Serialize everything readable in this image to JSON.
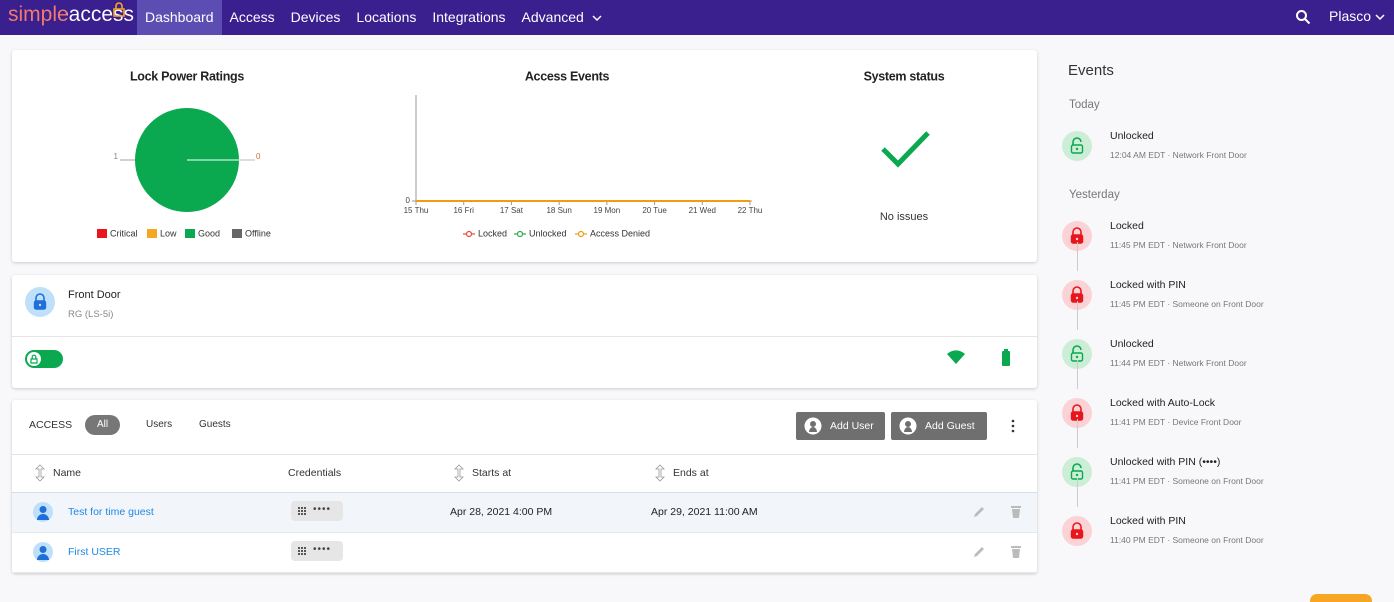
{
  "nav": {
    "logo": "simpleaccess",
    "items": [
      "Dashboard",
      "Access",
      "Devices",
      "Locations",
      "Integrations",
      "Advanced"
    ],
    "active": 0,
    "user": "Plasco"
  },
  "lock_power_ratings": {
    "type": "pie",
    "title": "Lock Power Ratings",
    "categories": [
      "Critical",
      "Low",
      "Good",
      "Offline"
    ],
    "colors": [
      "#e8161b",
      "#f5a623",
      "#0aa84f",
      "#666666"
    ],
    "values": [
      0,
      0,
      1,
      0
    ]
  },
  "access_events": {
    "type": "line",
    "title": "Access Events",
    "categories": [
      "15 Thu",
      "16 Fri",
      "17 Sat",
      "18 Sun",
      "19 Mon",
      "20 Tue",
      "21 Wed",
      "22 Thu"
    ],
    "ylim": [
      0,
      1
    ],
    "yticks": [
      0
    ],
    "series": [
      {
        "name": "Locked",
        "color": "#e74c3c",
        "values": [
          0,
          0,
          0,
          0,
          0,
          0,
          0,
          0
        ]
      },
      {
        "name": "Unlocked",
        "color": "#2eaa4a",
        "values": [
          0,
          0,
          0,
          0,
          0,
          0,
          0,
          0
        ]
      },
      {
        "name": "Access Denied",
        "color": "#f39c12",
        "values": [
          0,
          0,
          0,
          0,
          0,
          0,
          0,
          0
        ]
      }
    ]
  },
  "system_status": {
    "title": "System status",
    "message": "No issues"
  },
  "device": {
    "name": "Front Door",
    "model": "RG (LS-5i)"
  },
  "access": {
    "label": "ACCESS",
    "tabs": [
      "All",
      "Users",
      "Guests"
    ],
    "active_tab": 0,
    "buttons": [
      "Add User",
      "Add Guest"
    ],
    "columns": [
      "Name",
      "Credentials",
      "Starts at",
      "Ends at"
    ],
    "rows": [
      {
        "name": "Test for time guest",
        "credential": "••••",
        "starts": "Apr 28, 2021 4:00 PM",
        "ends": "Apr 29, 2021 11:00 AM"
      },
      {
        "name": "First USER",
        "credential": "••••"
      }
    ]
  },
  "events": {
    "title": "Events",
    "groups": [
      {
        "label": "Today",
        "items": [
          {
            "title": "Unlocked",
            "time": "12:04 AM EDT · Network Front Door"
          }
        ]
      },
      {
        "label": "Yesterday",
        "items": [
          {
            "title": "Locked",
            "time": "11:45 PM EDT · Network Front Door"
          },
          {
            "title": "Locked with PIN",
            "time": "11:45 PM EDT · Someone on Front Door"
          },
          {
            "title": "Unlocked",
            "time": "11:44 PM EDT · Network Front Door"
          },
          {
            "title": "Locked with Auto-Lock",
            "time": "11:41 PM EDT · Device Front Door"
          },
          {
            "title": "Unlocked with PIN (••••)",
            "time": "11:41 PM EDT · Someone on Front Door"
          },
          {
            "title": "Locked with PIN",
            "time": "11:40 PM EDT · Someone on Front Door"
          }
        ]
      }
    ]
  }
}
